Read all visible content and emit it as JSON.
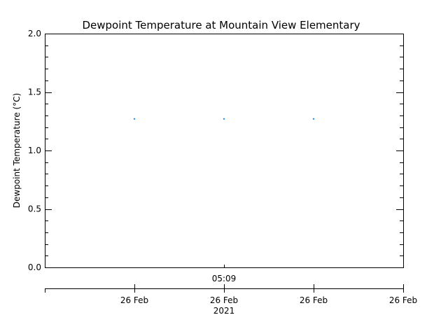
{
  "chart_data": {
    "type": "scatter",
    "title": "Dewpoint Temperature at Mountain View Elementary",
    "ylabel": "Dewpoint Temperature (°C)",
    "xlabel": "",
    "ylim": [
      0.0,
      2.0
    ],
    "y_ticks": [
      "0.0",
      "0.5",
      "1.0",
      "1.5",
      "2.0"
    ],
    "time_label": "05:09",
    "year_label": "2021",
    "x_ticks": [
      "26 Feb",
      "26 Feb",
      "26 Feb",
      "26 Feb"
    ],
    "points": [
      {
        "x_index": 0,
        "y": 1.27
      },
      {
        "x_index": 1,
        "y": 1.27
      },
      {
        "x_index": 2,
        "y": 1.27
      }
    ],
    "point_color": "#1a8cff",
    "grid": false
  }
}
